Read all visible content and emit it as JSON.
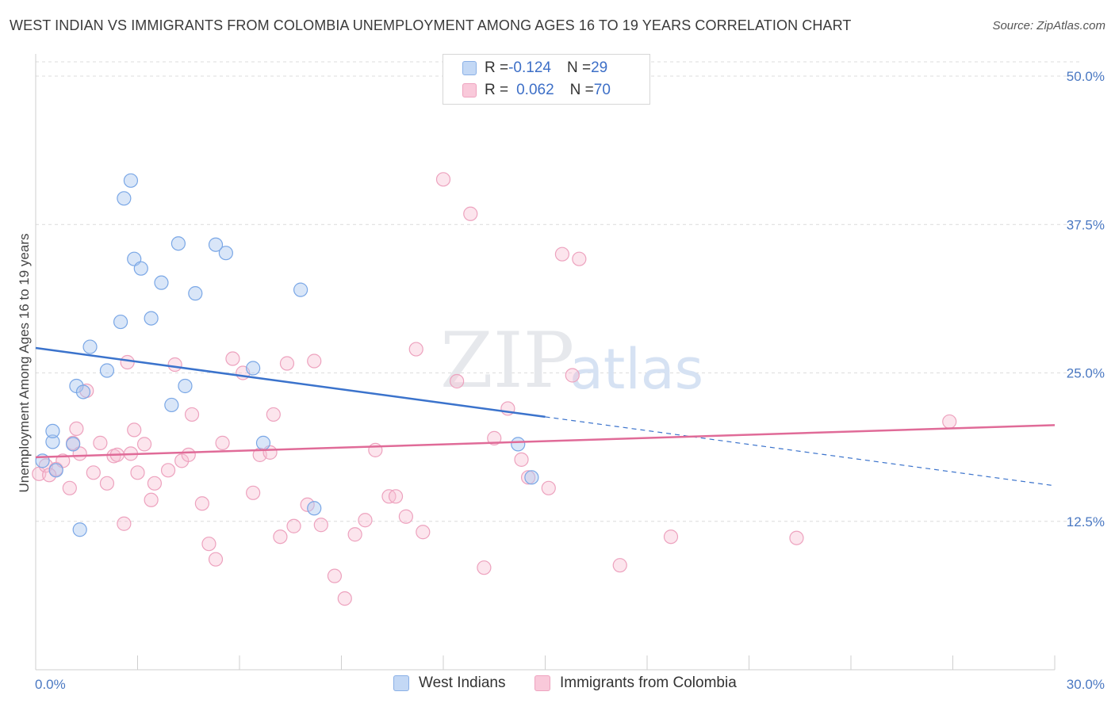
{
  "title": "WEST INDIAN VS IMMIGRANTS FROM COLOMBIA UNEMPLOYMENT AMONG AGES 16 TO 19 YEARS CORRELATION CHART",
  "source": "Source: ZipAtlas.com",
  "watermark": {
    "zip": "ZIP",
    "atlas": "atlas"
  },
  "legend": {
    "rows": [
      {
        "r_label": "R = ",
        "r_value": "-0.124",
        "n_label": "N = ",
        "n_value": "29"
      },
      {
        "r_label": "R = ",
        "r_value": "0.062",
        "n_label": "N = ",
        "n_value": "70"
      }
    ]
  },
  "bottom_legend": {
    "series_a": "West Indians",
    "series_b": "Immigrants from Colombia"
  },
  "chart_data": {
    "type": "scatter",
    "title": "WEST INDIAN VS IMMIGRANTS FROM COLOMBIA UNEMPLOYMENT AMONG AGES 16 TO 19 YEARS CORRELATION CHART",
    "xlabel": "",
    "ylabel": "Unemployment Among Ages 16 to 19 years",
    "xlim": [
      0,
      30
    ],
    "ylim": [
      0,
      50
    ],
    "x_tick_labels": [
      "0.0%",
      "30.0%"
    ],
    "y_ticks": [
      12.5,
      25.0,
      37.5,
      50.0
    ],
    "y_tick_labels": [
      "12.5%",
      "25.0%",
      "37.5%",
      "50.0%"
    ],
    "grid": "horizontal dashed",
    "legend_placement": "top-center and bottom",
    "colors": {
      "west_indians": "#7aa7e6",
      "west_indians_line": "#3b73cc",
      "colombia": "#f0a0bd",
      "colombia_line": "#e06b98"
    },
    "series": [
      {
        "name": "West Indians",
        "r": -0.124,
        "n": 29,
        "trend": {
          "x": [
            0,
            15
          ],
          "y": [
            27.1,
            21.3
          ],
          "dashed_to": [
            30,
            15.5
          ]
        },
        "points": [
          [
            0.2,
            17.6
          ],
          [
            0.5,
            19.2
          ],
          [
            0.5,
            20.1
          ],
          [
            0.6,
            16.8
          ],
          [
            1.2,
            23.9
          ],
          [
            1.4,
            23.4
          ],
          [
            1.6,
            27.2
          ],
          [
            1.1,
            19.0
          ],
          [
            2.1,
            25.2
          ],
          [
            1.3,
            11.8
          ],
          [
            2.5,
            29.3
          ],
          [
            2.9,
            34.6
          ],
          [
            3.1,
            33.8
          ],
          [
            3.4,
            29.6
          ],
          [
            2.8,
            41.2
          ],
          [
            2.6,
            39.7
          ],
          [
            3.7,
            32.6
          ],
          [
            4.2,
            35.9
          ],
          [
            4.0,
            22.3
          ],
          [
            4.4,
            23.9
          ],
          [
            4.7,
            31.7
          ],
          [
            5.6,
            35.1
          ],
          [
            5.3,
            35.8
          ],
          [
            6.4,
            25.4
          ],
          [
            6.7,
            19.1
          ],
          [
            7.8,
            32.0
          ],
          [
            8.2,
            13.6
          ],
          [
            14.2,
            19.0
          ],
          [
            14.6,
            16.2
          ]
        ]
      },
      {
        "name": "Immigrants from Colombia",
        "r": 0.062,
        "n": 70,
        "trend": {
          "x": [
            0,
            30
          ],
          "y": [
            17.9,
            20.6
          ]
        },
        "points": [
          [
            0.1,
            16.5
          ],
          [
            0.3,
            17.2
          ],
          [
            0.6,
            16.9
          ],
          [
            0.8,
            17.6
          ],
          [
            1.0,
            15.3
          ],
          [
            1.1,
            19.1
          ],
          [
            1.2,
            20.3
          ],
          [
            1.3,
            18.2
          ],
          [
            1.5,
            23.5
          ],
          [
            1.7,
            16.6
          ],
          [
            1.9,
            19.1
          ],
          [
            2.1,
            15.7
          ],
          [
            2.3,
            18.0
          ],
          [
            2.4,
            18.1
          ],
          [
            2.6,
            12.3
          ],
          [
            2.7,
            25.9
          ],
          [
            2.8,
            18.2
          ],
          [
            2.9,
            20.2
          ],
          [
            3.0,
            16.6
          ],
          [
            3.2,
            19.0
          ],
          [
            3.4,
            14.3
          ],
          [
            3.5,
            15.7
          ],
          [
            3.9,
            16.8
          ],
          [
            4.1,
            25.7
          ],
          [
            4.3,
            17.6
          ],
          [
            4.5,
            18.1
          ],
          [
            4.6,
            21.5
          ],
          [
            4.9,
            14.0
          ],
          [
            5.1,
            10.6
          ],
          [
            5.3,
            9.3
          ],
          [
            5.5,
            19.1
          ],
          [
            5.8,
            26.2
          ],
          [
            6.1,
            25.0
          ],
          [
            6.4,
            14.9
          ],
          [
            6.6,
            18.1
          ],
          [
            6.9,
            18.3
          ],
          [
            7.0,
            21.5
          ],
          [
            7.2,
            11.2
          ],
          [
            7.4,
            25.8
          ],
          [
            7.6,
            12.1
          ],
          [
            8.0,
            13.9
          ],
          [
            8.2,
            26.0
          ],
          [
            8.4,
            12.2
          ],
          [
            8.8,
            7.9
          ],
          [
            9.1,
            6.0
          ],
          [
            9.4,
            11.4
          ],
          [
            9.7,
            12.6
          ],
          [
            10.0,
            18.5
          ],
          [
            10.4,
            14.6
          ],
          [
            10.6,
            14.6
          ],
          [
            10.9,
            12.9
          ],
          [
            11.2,
            27.0
          ],
          [
            11.4,
            11.6
          ],
          [
            12.0,
            41.3
          ],
          [
            12.4,
            24.3
          ],
          [
            12.8,
            38.4
          ],
          [
            13.2,
            8.6
          ],
          [
            13.5,
            19.5
          ],
          [
            13.9,
            22.0
          ],
          [
            14.3,
            17.7
          ],
          [
            14.5,
            16.2
          ],
          [
            15.1,
            15.3
          ],
          [
            15.5,
            35.0
          ],
          [
            15.8,
            24.8
          ],
          [
            16.0,
            34.6
          ],
          [
            17.2,
            8.8
          ],
          [
            18.7,
            11.2
          ],
          [
            22.4,
            11.1
          ],
          [
            26.9,
            20.9
          ],
          [
            0.4,
            16.4
          ]
        ]
      }
    ]
  }
}
